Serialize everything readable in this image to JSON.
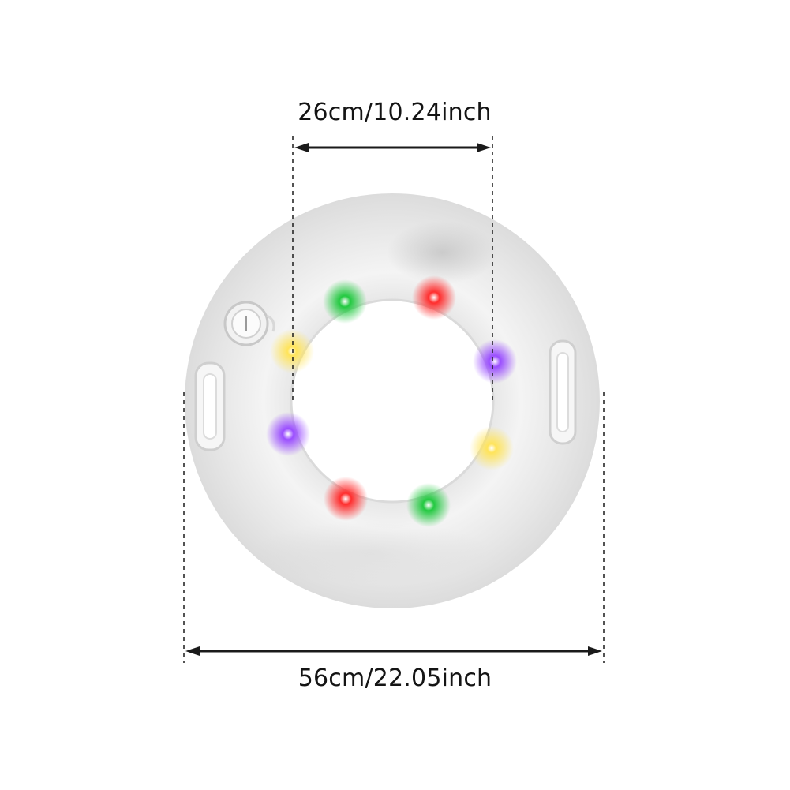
{
  "product": "LED light-up swim ring",
  "dimensions": {
    "inner_label": "26cm/10.24inch",
    "outer_label": "56cm/22.05inch"
  },
  "colors": {
    "ring": "#ececec",
    "ring_shadow": "#cfcfcf",
    "dimension_line": "#1a1a1a",
    "led_green": "#22c940",
    "led_red": "#ff2d2d",
    "led_purple": "#9a4dff",
    "led_yellow": "#ffe45a"
  },
  "leds": [
    {
      "name": "led-green-top",
      "color": "led_green"
    },
    {
      "name": "led-red-top",
      "color": "led_red"
    },
    {
      "name": "led-purple-right",
      "color": "led_purple"
    },
    {
      "name": "led-yellow-right",
      "color": "led_yellow"
    },
    {
      "name": "led-green-bottom",
      "color": "led_green"
    },
    {
      "name": "led-red-bottom",
      "color": "led_red"
    },
    {
      "name": "led-purple-left",
      "color": "led_purple"
    },
    {
      "name": "led-yellow-left",
      "color": "led_yellow"
    }
  ]
}
